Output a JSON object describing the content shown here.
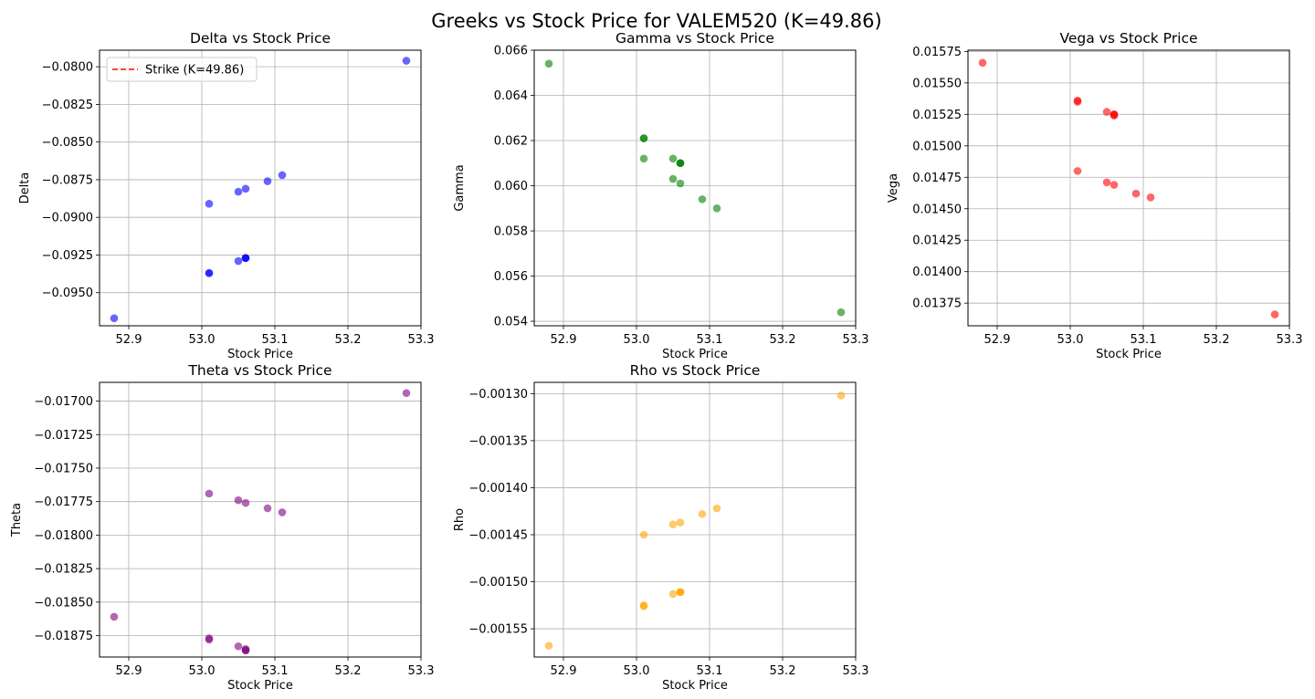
{
  "figure": {
    "title": "Greeks vs Stock Price for VALEM520 (K=49.86)"
  },
  "chart_data": [
    {
      "type": "scatter",
      "title": "Delta vs Stock Price",
      "xlabel": "Stock Price",
      "ylabel": "Delta",
      "xlim": [
        52.86,
        53.3
      ],
      "ylim": [
        -0.0972,
        -0.0789
      ],
      "xticks": [
        "52.9",
        "53.0",
        "53.1",
        "53.2",
        "53.3"
      ],
      "yticks": [
        "-0.0800",
        "-0.0825",
        "-0.0850",
        "-0.0875",
        "-0.0900",
        "-0.0925",
        "-0.0950"
      ],
      "grid": true,
      "color": "#0000ff",
      "legend": {
        "position": "top-left",
        "entries": [
          {
            "label": "Strike (K=49.86)",
            "color": "#ff0000",
            "style": "dashed"
          }
        ]
      },
      "x": [
        52.88,
        53.01,
        53.01,
        53.01,
        53.05,
        53.05,
        53.06,
        53.06,
        53.06,
        53.06,
        53.09,
        53.11,
        53.28
      ],
      "y": [
        -0.0967,
        -0.0937,
        -0.0937,
        -0.0891,
        -0.0929,
        -0.0883,
        -0.0927,
        -0.0927,
        -0.0927,
        -0.0881,
        -0.0876,
        -0.0872,
        -0.0796
      ]
    },
    {
      "type": "scatter",
      "title": "Gamma vs Stock Price",
      "xlabel": "Stock Price",
      "ylabel": "Gamma",
      "xlim": [
        52.86,
        53.3
      ],
      "ylim": [
        0.0538,
        0.066
      ],
      "xticks": [
        "52.9",
        "53.0",
        "53.1",
        "53.2",
        "53.3"
      ],
      "yticks": [
        "0.066",
        "0.064",
        "0.062",
        "0.060",
        "0.058",
        "0.056",
        "0.054"
      ],
      "grid": true,
      "color": "#008000",
      "x": [
        52.88,
        53.01,
        53.01,
        53.01,
        53.05,
        53.05,
        53.06,
        53.06,
        53.06,
        53.06,
        53.09,
        53.11,
        53.28
      ],
      "y": [
        0.0654,
        0.0621,
        0.0621,
        0.0612,
        0.0612,
        0.0603,
        0.061,
        0.061,
        0.061,
        0.0601,
        0.0594,
        0.059,
        0.0544
      ]
    },
    {
      "type": "scatter",
      "title": "Vega vs Stock Price",
      "xlabel": "Stock Price",
      "ylabel": "Vega",
      "xlim": [
        52.86,
        53.3
      ],
      "ylim": [
        0.01357,
        0.01576
      ],
      "xticks": [
        "52.9",
        "53.0",
        "53.1",
        "53.2",
        "53.3"
      ],
      "yticks": [
        "0.01575",
        "0.01550",
        "0.01525",
        "0.01500",
        "0.01475",
        "0.01450",
        "0.01425",
        "0.01400",
        "0.01375"
      ],
      "grid": true,
      "color": "#ff0000",
      "x": [
        52.88,
        53.01,
        53.01,
        53.01,
        53.05,
        53.05,
        53.06,
        53.06,
        53.06,
        53.06,
        53.09,
        53.11,
        53.28
      ],
      "y": [
        0.01566,
        0.01536,
        0.01535,
        0.0148,
        0.01527,
        0.01471,
        0.01525,
        0.01525,
        0.01524,
        0.01469,
        0.01462,
        0.01459,
        0.01366
      ]
    },
    {
      "type": "scatter",
      "title": "Theta vs Stock Price",
      "xlabel": "Stock Price",
      "ylabel": "Theta",
      "xlim": [
        52.86,
        53.3
      ],
      "ylim": [
        -0.01891,
        -0.01686
      ],
      "xticks": [
        "52.9",
        "53.0",
        "53.1",
        "53.2",
        "53.3"
      ],
      "yticks": [
        "-0.01700",
        "-0.01725",
        "-0.01750",
        "-0.01775",
        "-0.01800",
        "-0.01825",
        "-0.01850",
        "-0.01875"
      ],
      "grid": true,
      "color": "#800080",
      "x": [
        52.88,
        53.01,
        53.01,
        53.01,
        53.05,
        53.05,
        53.06,
        53.06,
        53.06,
        53.06,
        53.09,
        53.11,
        53.28
      ],
      "y": [
        -0.01861,
        -0.01877,
        -0.01878,
        -0.01769,
        -0.01883,
        -0.01774,
        -0.01885,
        -0.01886,
        -0.01886,
        -0.01776,
        -0.0178,
        -0.01783,
        -0.01694
      ]
    },
    {
      "type": "scatter",
      "title": "Rho vs Stock Price",
      "xlabel": "Stock Price",
      "ylabel": "Rho",
      "xlim": [
        52.86,
        53.3
      ],
      "ylim": [
        -0.00158,
        -0.001288
      ],
      "xticks": [
        "52.9",
        "53.0",
        "53.1",
        "53.2",
        "53.3"
      ],
      "yticks": [
        "-0.00130",
        "-0.00135",
        "-0.00140",
        "-0.00145",
        "-0.00150",
        "-0.00155"
      ],
      "grid": true,
      "color": "#ffa500",
      "x": [
        52.88,
        53.01,
        53.01,
        53.01,
        53.05,
        53.05,
        53.06,
        53.06,
        53.06,
        53.06,
        53.09,
        53.11,
        53.28
      ],
      "y": [
        -0.001568,
        -0.001525,
        -0.001526,
        -0.00145,
        -0.001513,
        -0.001439,
        -0.001511,
        -0.001511,
        -0.001511,
        -0.001437,
        -0.001428,
        -0.001422,
        -0.001302
      ]
    }
  ]
}
